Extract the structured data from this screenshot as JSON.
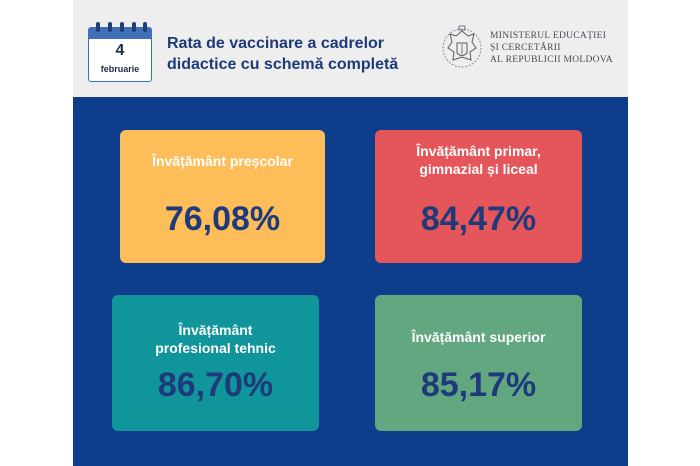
{
  "calendar": {
    "day": "4",
    "month": "februarie"
  },
  "header": {
    "title_line1": "Rata de vaccinare a cadrelor",
    "title_line2": "didactice cu schemă completă",
    "ministry_line1": "MINISTERUL EDUCAȚIEI",
    "ministry_line2": "ȘI CERCETĂRII",
    "ministry_line3": "AL REPUBLICII MOLDOVA"
  },
  "cards": [
    {
      "label_line1": "Învățământ preșcolar",
      "label_line2": "",
      "value": "76,08%",
      "color": "#fdbd59"
    },
    {
      "label_line1": "Învățământ primar,",
      "label_line2": "gimnazial și liceal",
      "value": "84,47%",
      "color": "#e5565a"
    },
    {
      "label_line1": "Învățământ",
      "label_line2": "profesional tehnic",
      "value": "86,70%",
      "color": "#10959b"
    },
    {
      "label_line1": "Învățământ superior",
      "label_line2": "",
      "value": "85,17%",
      "color": "#62a77f"
    }
  ],
  "colors": {
    "header_bg": "#eeeeee",
    "main_bg": "#0d3d8b",
    "title": "#1e3a7b"
  },
  "icons": {
    "calendar": "calendar-icon",
    "logo": "coat-of-arms-logo"
  }
}
